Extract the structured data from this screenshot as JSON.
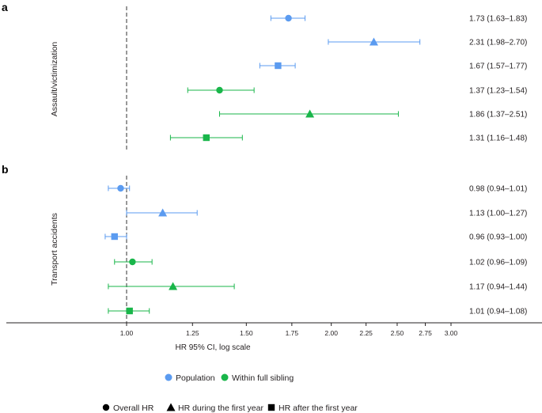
{
  "chart_data": [
    {
      "type": "forest",
      "panel": "a",
      "ylabel": "Assault/victimization",
      "xscale": "log",
      "rows": [
        {
          "group": "Population",
          "estimate": "Overall HR",
          "hr": 1.73,
          "lo": 1.63,
          "hi": 1.83,
          "label": "1.73 (1.63–1.83)"
        },
        {
          "group": "Population",
          "estimate": "HR during the first year",
          "hr": 2.31,
          "lo": 1.98,
          "hi": 2.7,
          "label": "2.31 (1.98–2.70)"
        },
        {
          "group": "Population",
          "estimate": "HR after the first year",
          "hr": 1.67,
          "lo": 1.57,
          "hi": 1.77,
          "label": "1.67 (1.57–1.77)"
        },
        {
          "group": "Within full sibling",
          "estimate": "Overall HR",
          "hr": 1.37,
          "lo": 1.23,
          "hi": 1.54,
          "label": "1.37 (1.23–1.54)"
        },
        {
          "group": "Within full sibling",
          "estimate": "HR during the first year",
          "hr": 1.86,
          "lo": 1.37,
          "hi": 2.51,
          "label": "1.86 (1.37–2.51)"
        },
        {
          "group": "Within full sibling",
          "estimate": "HR after the first year",
          "hr": 1.31,
          "lo": 1.16,
          "hi": 1.48,
          "label": "1.31 (1.16–1.48)"
        }
      ]
    },
    {
      "type": "forest",
      "panel": "b",
      "ylabel": "Transport accidents",
      "xscale": "log",
      "xlabel": "HR 95% CI, log scale",
      "xticks": [
        1.0,
        1.25,
        1.5,
        1.75,
        2.0,
        2.25,
        2.5,
        2.75,
        3.0
      ],
      "xtick_labels": [
        "1.00",
        "1.25",
        "1.50",
        "1.75",
        "2.00",
        "2.25",
        "2.50",
        "2.75",
        "3.00"
      ],
      "rows": [
        {
          "group": "Population",
          "estimate": "Overall HR",
          "hr": 0.98,
          "lo": 0.94,
          "hi": 1.01,
          "label": "0.98 (0.94–1.01)"
        },
        {
          "group": "Population",
          "estimate": "HR during the first year",
          "hr": 1.13,
          "lo": 1.0,
          "hi": 1.27,
          "label": "1.13 (1.00–1.27)"
        },
        {
          "group": "Population",
          "estimate": "HR after the first year",
          "hr": 0.96,
          "lo": 0.93,
          "hi": 1.0,
          "label": "0.96 (0.93–1.00)"
        },
        {
          "group": "Within full sibling",
          "estimate": "Overall HR",
          "hr": 1.02,
          "lo": 0.96,
          "hi": 1.09,
          "label": "1.02 (0.96–1.09)"
        },
        {
          "group": "Within full sibling",
          "estimate": "HR during the first year",
          "hr": 1.17,
          "lo": 0.94,
          "hi": 1.44,
          "label": "1.17 (0.94–1.44)"
        },
        {
          "group": "Within full sibling",
          "estimate": "HR after the first year",
          "hr": 1.01,
          "lo": 0.94,
          "hi": 1.08,
          "label": "1.01 (0.94–1.08)"
        }
      ]
    }
  ],
  "reference_line": 1.0,
  "colors": {
    "Population": "#5b9bf0",
    "Within full sibling": "#19b64a",
    "axis": "#231f20",
    "reference": "#555555"
  },
  "legend": {
    "groups": [
      {
        "label": "Population",
        "key": "Population"
      },
      {
        "label": "Within full sibling",
        "key": "Within full sibling"
      }
    ],
    "estimates": [
      {
        "label": "Overall HR",
        "shape": "circle"
      },
      {
        "label": "HR during the first year",
        "shape": "triangle"
      },
      {
        "label": "HR after the first year",
        "shape": "square"
      }
    ]
  }
}
